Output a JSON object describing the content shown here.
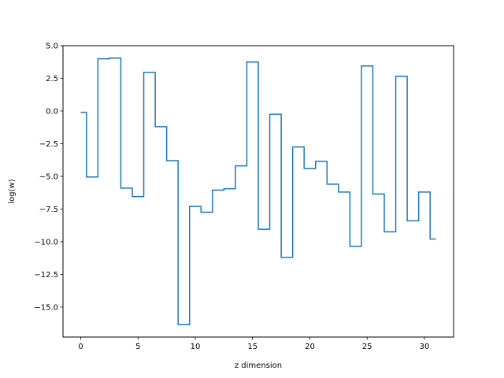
{
  "chart_data": {
    "type": "line",
    "drawstyle": "steps-mid",
    "title": "",
    "xlabel": "z dimension",
    "ylabel": "log(w)",
    "xlim": [
      -1.55,
      32.55
    ],
    "ylim": [
      -17.3,
      5.0
    ],
    "xticks": [
      0,
      5,
      10,
      15,
      20,
      25,
      30
    ],
    "xtick_labels": [
      "0",
      "5",
      "10",
      "15",
      "20",
      "25",
      "30"
    ],
    "yticks": [
      5.0,
      2.5,
      0.0,
      -2.5,
      -5.0,
      -7.5,
      -10.0,
      -12.5,
      -15.0
    ],
    "ytick_labels": [
      "5.0",
      "2.5",
      "0.0",
      "−2.5",
      "−5.0",
      "−7.5",
      "−10.0",
      "−12.5",
      "−15.0"
    ],
    "grid": false,
    "color": "#1f77b4",
    "series": [
      {
        "x": [
          0,
          1,
          2,
          3,
          4,
          5,
          6,
          7,
          8,
          9,
          10,
          11,
          12,
          13,
          14,
          15,
          16,
          17,
          18,
          19,
          20,
          21,
          22,
          23,
          24,
          25,
          26,
          27,
          28,
          29,
          30,
          31
        ],
        "values": [
          -0.1,
          -5.05,
          4.0,
          4.05,
          -5.9,
          -6.55,
          2.95,
          -1.2,
          -3.8,
          -16.35,
          -7.3,
          -7.75,
          -6.05,
          -5.95,
          -4.2,
          3.75,
          -9.05,
          -0.25,
          -11.2,
          -2.75,
          -4.4,
          -3.85,
          -5.6,
          -6.2,
          -10.35,
          3.45,
          -6.35,
          -9.25,
          2.65,
          -8.4,
          -6.2,
          -9.8
        ]
      }
    ]
  }
}
